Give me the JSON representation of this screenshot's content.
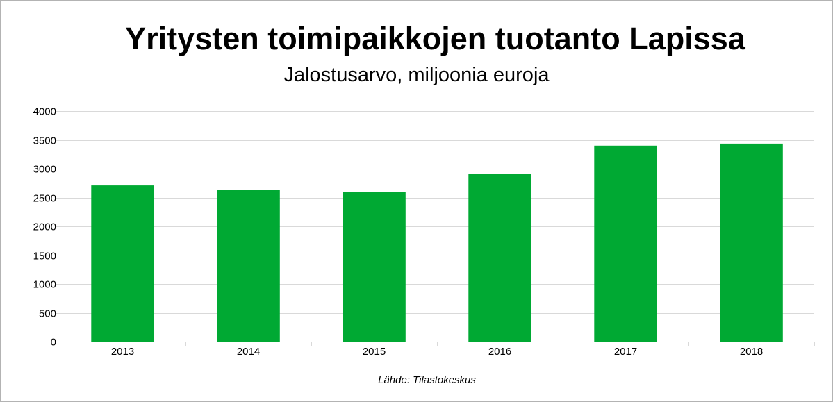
{
  "chart_data": {
    "type": "bar",
    "title": "Yritysten toimipaikkojen tuotanto Lapissa",
    "subtitle": "Jalostusarvo, miljoonia euroja",
    "source": "Lähde: Tilastokeskus",
    "categories": [
      "2013",
      "2014",
      "2015",
      "2016",
      "2017",
      "2018"
    ],
    "values": [
      2710,
      2635,
      2600,
      2905,
      3400,
      3435
    ],
    "ylim": [
      0,
      4000
    ],
    "yticks": [
      0,
      500,
      1000,
      1500,
      2000,
      2500,
      3000,
      3500,
      4000
    ],
    "grid": true,
    "legend": "none",
    "bar_color": "#00a933",
    "grid_color": "#d9d9d9"
  }
}
